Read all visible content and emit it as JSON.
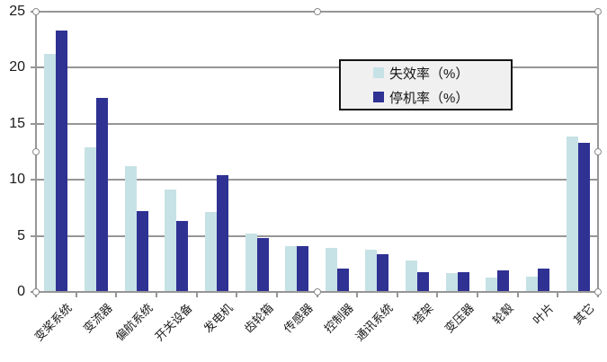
{
  "chart_data": {
    "type": "bar",
    "title": "",
    "categories": [
      "变桨系统",
      "变流器",
      "偏航系统",
      "开关设备",
      "发电机",
      "齿轮箱",
      "传感器",
      "控制器",
      "通讯系统",
      "塔架",
      "变压器",
      "轮毂",
      "叶片",
      "其它"
    ],
    "series": [
      {
        "name": "失效率（%）",
        "color": "#C6E2E6",
        "values": [
          21.2,
          12.9,
          11.2,
          9.1,
          7.1,
          5.2,
          4.1,
          3.9,
          3.8,
          2.8,
          1.7,
          1.3,
          1.4,
          13.9
        ]
      },
      {
        "name": "停机率（%）",
        "color": "#2F3193",
        "values": [
          23.3,
          17.3,
          7.2,
          6.3,
          10.4,
          4.8,
          4.1,
          2.1,
          3.4,
          1.8,
          1.8,
          1.9,
          2.1,
          13.3
        ]
      }
    ],
    "xlabel": "",
    "ylabel": "",
    "ylim": [
      0,
      25
    ],
    "yticks": [
      0,
      5,
      10,
      15,
      20,
      25
    ],
    "grid": true,
    "legend_position": "upper-center-right",
    "colors": {
      "gridline": "#969696",
      "axis": "#969696",
      "legend_bg": "#F0F0F0",
      "legend_border": "#141414",
      "background": "#FFFFFF"
    }
  }
}
